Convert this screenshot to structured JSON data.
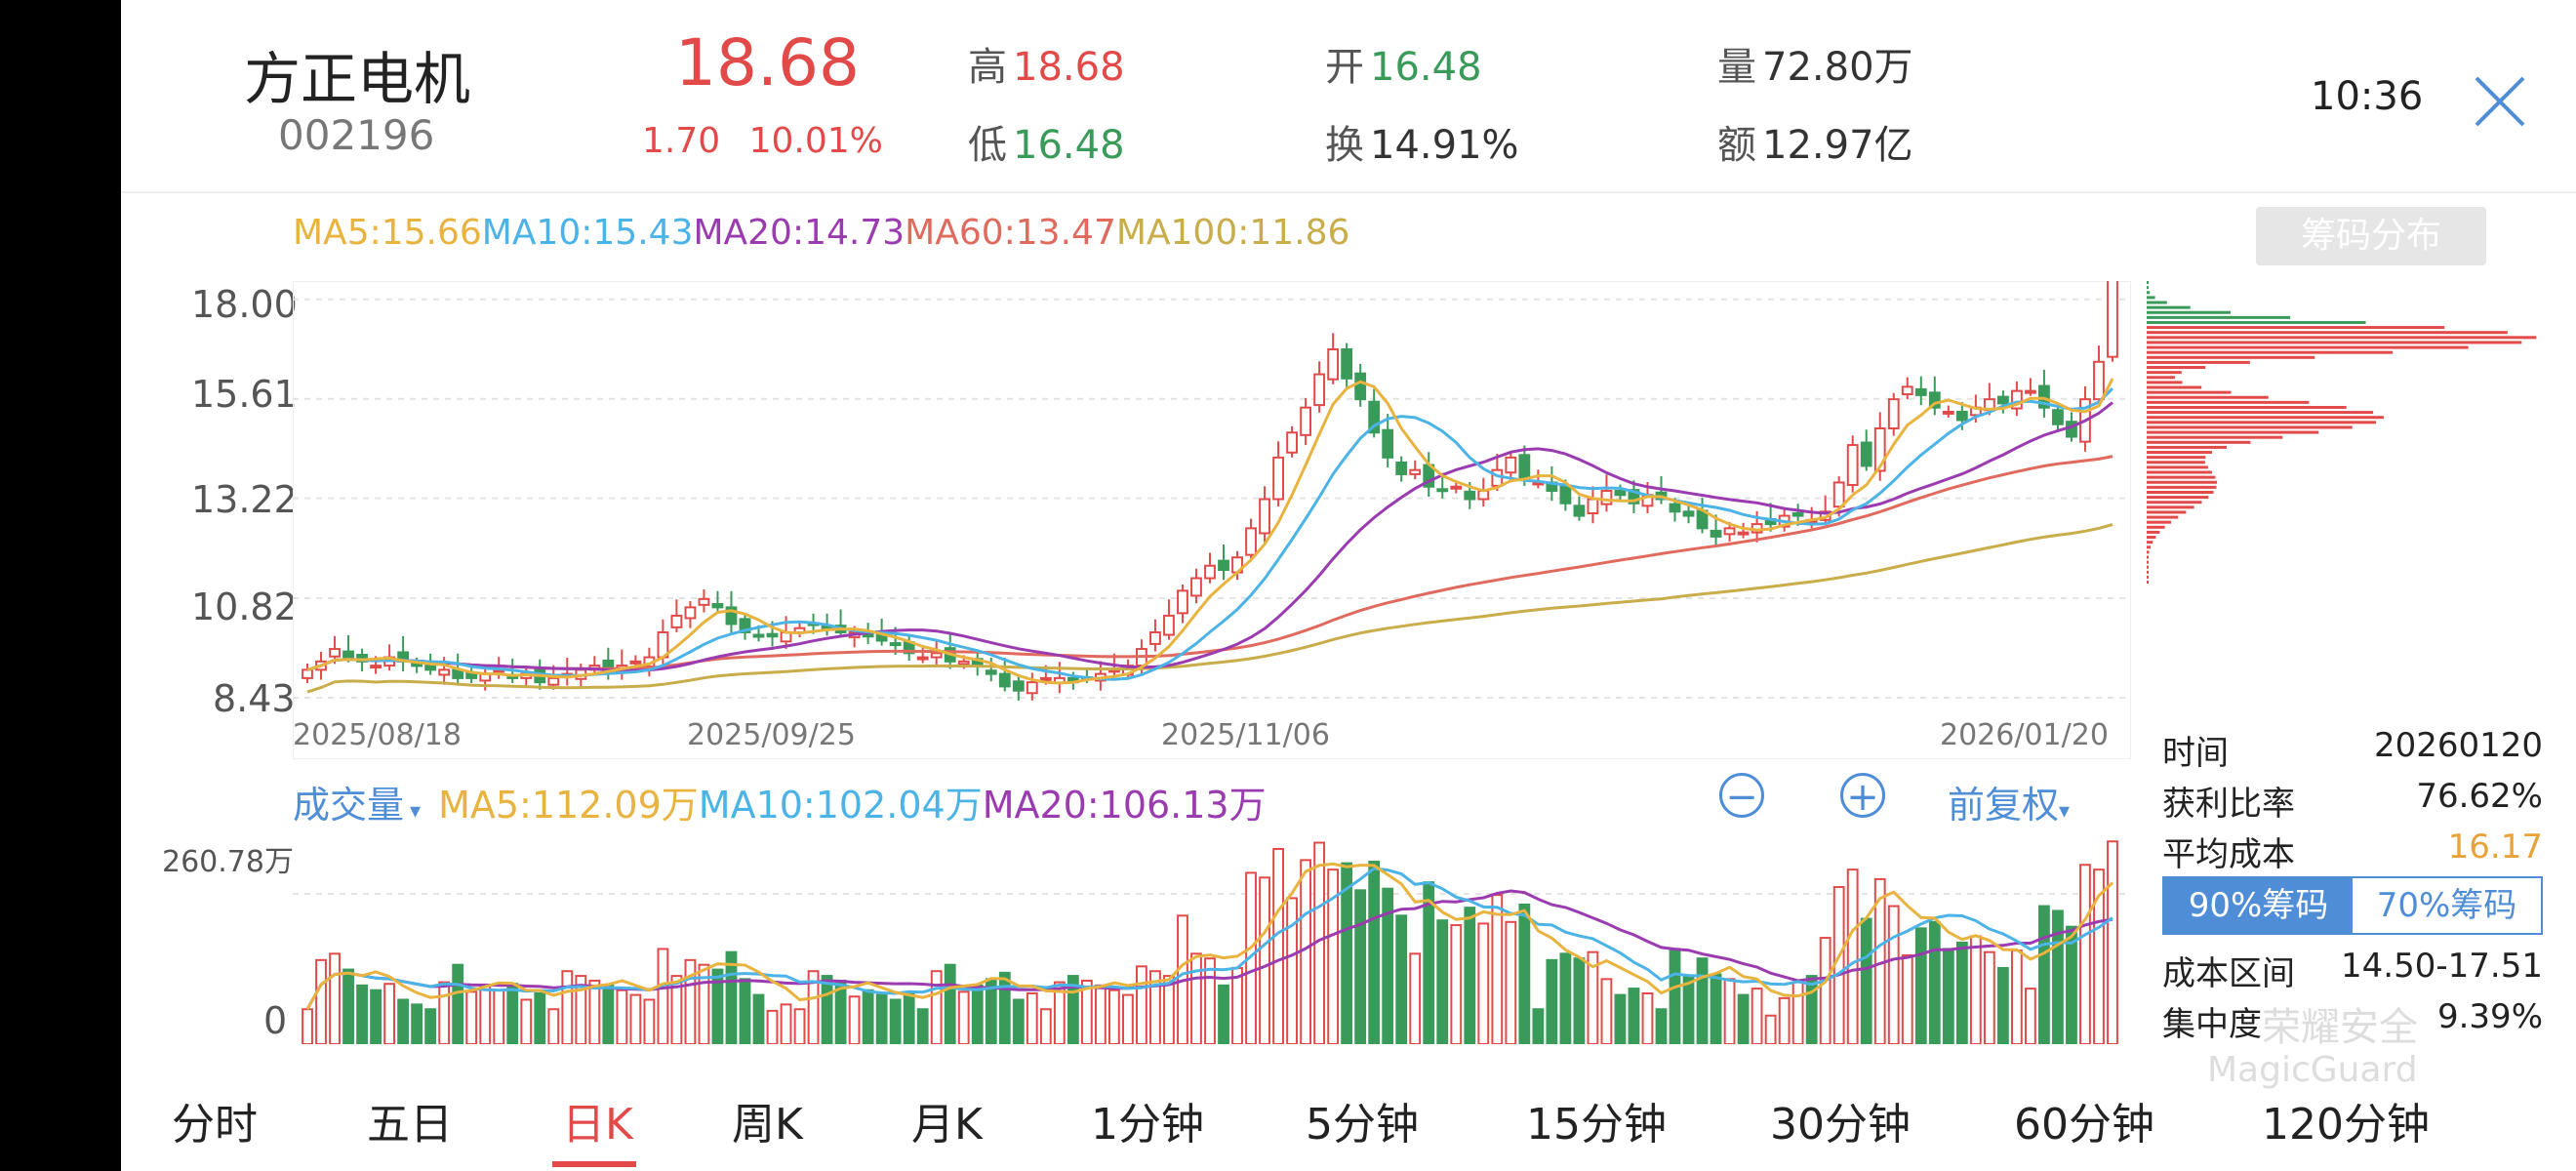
{
  "header": {
    "stock_name": "方正电机",
    "stock_code": "002196",
    "price": "18.68",
    "change": "1.70",
    "change_pct": "10.01%",
    "high_label": "高",
    "high": "18.68",
    "low_label": "低",
    "low": "16.48",
    "open_label": "开",
    "open": "16.48",
    "turnover_label": "换",
    "turnover": "14.91%",
    "volume_label": "量",
    "volume": "72.80万",
    "amount_label": "额",
    "amount": "12.97亿",
    "time": "10:36",
    "close_icon": "close-icon"
  },
  "ma": {
    "ma5": "MA5:15.66",
    "ma10": "MA10:15.43",
    "ma20": "MA20:14.73",
    "ma60": "MA60:13.47",
    "ma100": "MA100:11.86"
  },
  "chip_button": "筹码分布",
  "price_axis": [
    "18.00",
    "15.61",
    "13.22",
    "10.82",
    "8.43"
  ],
  "date_labels": [
    "2025/08/18",
    "2025/09/25",
    "2025/11/06",
    "2026/01/20"
  ],
  "volume_header": {
    "label": "成交量",
    "ma5": "MA5:112.09万",
    "ma10": "MA10:102.04万",
    "ma20": "MA20:106.13万",
    "adjust": "前复权",
    "zoom_out": "−",
    "zoom_in": "+"
  },
  "volume_axis": {
    "max": "260.78万",
    "zero": "0"
  },
  "chip_info": {
    "time_label": "时间",
    "time_value": "20260120",
    "profit_label": "获利比率",
    "profit_value": "76.62%",
    "avg_label": "平均成本",
    "avg_value": "16.17",
    "tab_90": "90%筹码",
    "tab_70": "70%筹码",
    "range_label": "成本区间",
    "range_value": "14.50-17.51",
    "conc_label": "集中度",
    "conc_value": "9.39%"
  },
  "watermark": {
    "line1": "荣耀安全",
    "line2": "MagicGuard"
  },
  "tabs": [
    "分时",
    "五日",
    "日K",
    "周K",
    "月K",
    "1分钟",
    "5分钟",
    "15分钟",
    "30分钟",
    "60分钟",
    "120分钟"
  ],
  "active_tab": "日K",
  "colors": {
    "up": "#e24a4a",
    "down": "#3a9a5a",
    "ma5": "#e8b33f",
    "ma10": "#4cb3e6",
    "ma20": "#9b3bb0",
    "ma60": "#e06a5e",
    "ma100": "#c9ad4a",
    "accent": "#4f8ed6"
  },
  "chart_data": {
    "type": "candlestick",
    "xlabels": [
      "2025/08/18",
      "2025/09/25",
      "2025/11/06",
      "2026/01/20"
    ],
    "ylim": [
      8.43,
      18.0
    ],
    "yticks": [
      18.0,
      15.61,
      13.22,
      10.82,
      8.43
    ],
    "close": [
      9.1,
      9.3,
      9.6,
      9.4,
      9.3,
      9.2,
      9.4,
      9.3,
      9.2,
      9.1,
      9.1,
      8.9,
      8.9,
      9.0,
      9.1,
      8.9,
      9.0,
      8.8,
      8.9,
      9.0,
      9.1,
      9.2,
      9.1,
      9.2,
      9.3,
      9.4,
      10.0,
      10.4,
      10.6,
      10.8,
      10.6,
      10.2,
      10.0,
      9.9,
      9.9,
      10.0,
      10.1,
      10.2,
      10.1,
      10.0,
      10.0,
      9.9,
      9.8,
      9.7,
      9.5,
      9.4,
      9.5,
      9.3,
      9.3,
      9.2,
      9.0,
      8.7,
      8.6,
      8.8,
      8.9,
      8.9,
      8.8,
      8.9,
      9.0,
      9.1,
      9.2,
      9.6,
      10.0,
      10.4,
      11.0,
      11.3,
      11.6,
      11.5,
      11.8,
      12.5,
      13.2,
      14.2,
      14.8,
      15.4,
      16.2,
      16.8,
      16.1,
      15.6,
      14.8,
      14.2,
      13.8,
      13.9,
      13.5,
      13.4,
      13.5,
      13.2,
      13.4,
      13.9,
      14.2,
      13.7,
      13.6,
      13.4,
      13.1,
      12.8,
      13.2,
      13.4,
      13.3,
      13.1,
      13.3,
      13.2,
      12.9,
      12.8,
      12.5,
      12.3,
      12.5,
      12.4,
      12.6,
      12.6,
      12.8,
      12.8,
      12.7,
      12.9,
      13.6,
      14.5,
      14.0,
      14.9,
      15.6,
      15.9,
      15.7,
      15.4,
      15.3,
      15.1,
      15.4,
      15.6,
      15.5,
      15.8,
      15.8,
      15.4,
      15.0,
      14.7,
      15.6,
      16.5,
      18.68
    ],
    "volume_range": [
      0,
      260.78
    ],
    "series_ma": [
      {
        "name": "MA5",
        "value": 15.66
      },
      {
        "name": "MA10",
        "value": 15.43
      },
      {
        "name": "MA20",
        "value": 14.73
      },
      {
        "name": "MA60",
        "value": 13.47
      },
      {
        "name": "MA100",
        "value": 11.86
      }
    ]
  }
}
